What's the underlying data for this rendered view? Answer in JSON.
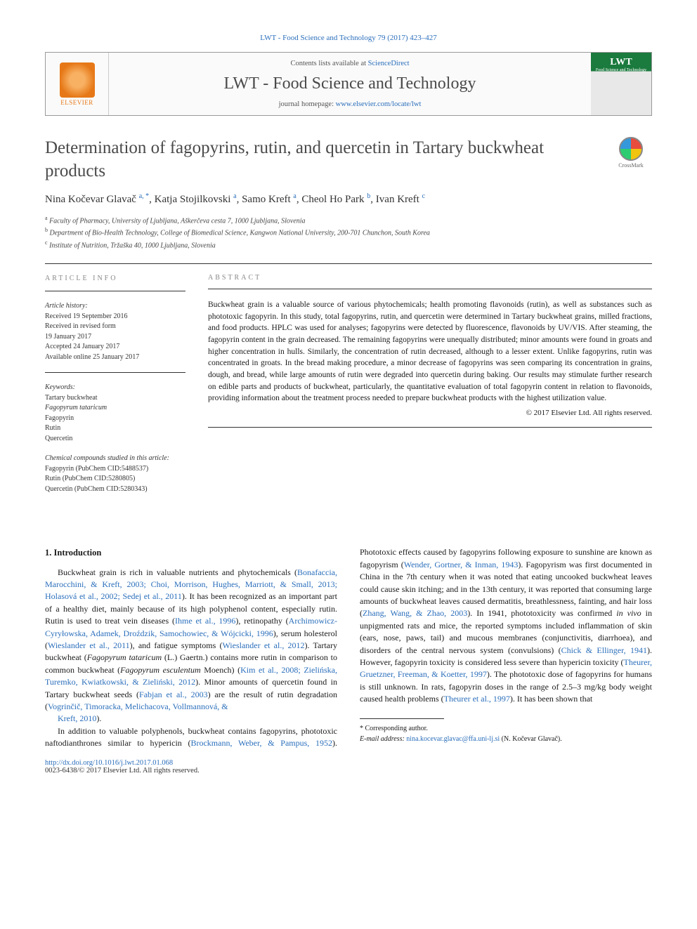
{
  "journal_ref": "LWT - Food Science and Technology 79 (2017) 423–427",
  "header": {
    "publisher": "ELSEVIER",
    "contents_prefix": "Contents lists available at ",
    "contents_link": "ScienceDirect",
    "journal_name": "LWT - Food Science and Technology",
    "homepage_prefix": "journal homepage: ",
    "homepage_url": "www.elsevier.com/locate/lwt",
    "cover_abbr": "LWT",
    "cover_sub": "Food Science and Technology"
  },
  "title": "Determination of fagopyrins, rutin, and quercetin in Tartary buckwheat products",
  "crossmark": "CrossMark",
  "authors_html": "Nina Kočevar Glavač <span class='sup'>a, *</span>, Katja Stojilkovski <span class='sup'>a</span>, Samo Kreft <span class='sup'>a</span>, Cheol Ho Park <span class='sup'>b</span>, Ivan Kreft <span class='sup'>c</span>",
  "affiliations": [
    {
      "sup": "a",
      "text": "Faculty of Pharmacy, University of Ljubljana, Aškerčeva cesta 7, 1000 Ljubljana, Slovenia"
    },
    {
      "sup": "b",
      "text": "Department of Bio-Health Technology, College of Biomedical Science, Kangwon National University, 200-701 Chunchon, South Korea"
    },
    {
      "sup": "c",
      "text": "Institute of Nutrition, Tržaška 40, 1000 Ljubljana, Slovenia"
    }
  ],
  "info": {
    "heading_info": "article info",
    "heading_abstract": "abstract",
    "history_label": "Article history:",
    "history": [
      "Received 19 September 2016",
      "Received in revised form",
      "19 January 2017",
      "Accepted 24 January 2017",
      "Available online 25 January 2017"
    ],
    "keywords_label": "Keywords:",
    "keywords": [
      "Tartary buckwheat",
      "Fagopyrum tataricum",
      "Fagopyrin",
      "Rutin",
      "Quercetin"
    ],
    "compounds_label": "Chemical compounds studied in this article:",
    "compounds": [
      "Fagopyrin (PubChem CID:5488537)",
      "Rutin (PubChem CID:5280805)",
      "Quercetin (PubChem CID:5280343)"
    ]
  },
  "abstract": "Buckwheat grain is a valuable source of various phytochemicals; health promoting flavonoids (rutin), as well as substances such as phototoxic fagopyrin. In this study, total fagopyrins, rutin, and quercetin were determined in Tartary buckwheat grains, milled fractions, and food products. HPLC was used for analyses; fagopyrins were detected by fluorescence, flavonoids by UV/VIS. After steaming, the fagopyrin content in the grain decreased. The remaining fagopyrins were unequally distributed; minor amounts were found in groats and higher concentration in hulls. Similarly, the concentration of rutin decreased, although to a lesser extent. Unlike fagopyrins, rutin was concentrated in groats. In the bread making procedure, a minor decrease of fagopyrins was seen comparing its concentration in grains, dough, and bread, while large amounts of rutin were degraded into quercetin during baking. Our results may stimulate further research on edible parts and products of buckwheat, particularly, the quantitative evaluation of total fagopyrin content in relation to flavonoids, providing information about the treatment process needed to prepare buckwheat products with the highest utilization value.",
  "copyright": "© 2017 Elsevier Ltd. All rights reserved.",
  "section1_heading": "1. Introduction",
  "col1_html": "Buckwheat grain is rich in valuable nutrients and phytochemicals (<span class='cite'>Bonafaccia, Marocchini, &amp; Kreft, 2003; Choi, Morrison, Hughes, Marriott, &amp; Small, 2013; Holasová et al., 2002; Sedej et al., 2011</span>). It has been recognized as an important part of a healthy diet, mainly because of its high polyphenol content, especially rutin. Rutin is used to treat vein diseases (<span class='cite'>Ihme et al., 1996</span>), retinopathy (<span class='cite'>Archimowicz-Cyryłowska, Adamek, Droździk, Samochowiec, &amp; Wójcicki, 1996</span>), serum holesterol (<span class='cite'>Wieslander et al., 2011</span>), and fatigue symptoms (<span class='cite'>Wieslander et al., 2012</span>). Tartary buckwheat (<span class='ital'>Fagopyrum tataricum</span> (L.) Gaertn.) contains more rutin in comparison to common buckwheat (<span class='ital'>Fagopyrum esculentum</span> Moench) (<span class='cite'>Kim et al., 2008; Zielińska, Turemko, Kwiatkowski, &amp; Zieliński, 2012</span>). Minor amounts of quercetin found in Tartary buckwheat seeds (<span class='cite'>Fabjan et al., 2003</span>) are the result of rutin degradation (<span class='cite'>Vogrinčič, Timoracka, Melichacova, Vollmannová, &amp;</span>",
  "col2_html": "<span class='cite'>Kreft, 2010</span>).</p><p>In addition to valuable polyphenols, buckwheat contains fagopyrins, phototoxic naftodianthrones similar to hypericin (<span class='cite'>Brockmann, Weber, &amp; Pampus, 1952</span>). Phototoxic effects caused by fagopyrins following exposure to sunshine are known as fagopyrism (<span class='cite'>Wender, Gortner, &amp; Inman, 1943</span>). Fagopyrism was first documented in China in the 7th century when it was noted that eating uncooked buckwheat leaves could cause skin itching; and in the 13th century, it was reported that consuming large amounts of buckwheat leaves caused dermatitis, breathlessness, fainting, and hair loss (<span class='cite'>Zhang, Wang, &amp; Zhao, 2003</span>). In 1941, phototoxicity was confirmed <span class='ital'>in vivo</span> in unpigmented rats and mice, the reported symptoms included inflammation of skin (ears, nose, paws, tail) and mucous membranes (conjunctivitis, diarrhoea), and disorders of the central nervous system (convulsions) (<span class='cite'>Chick &amp; Ellinger, 1941</span>). However, fagopyrin toxicity is considered less severe than hypericin toxicity (<span class='cite'>Theurer, Gruetzner, Freeman, &amp; Koetter, 1997</span>). The phototoxic dose of fagopyrins for humans is still unknown. In rats, fagopyrin doses in the range of 2.5–3 mg/kg body weight caused health problems (<span class='cite'>Theurer et al., 1997</span>). It has been shown that",
  "footer": {
    "corr_label": "* Corresponding author.",
    "email_label": "E-mail address: ",
    "email": "nina.kocevar.glavac@ffa.uni-lj.si",
    "email_suffix": " (N. Kočevar Glavač).",
    "doi": "http://dx.doi.org/10.1016/j.lwt.2017.01.068",
    "issn": "0023-6438/© 2017 Elsevier Ltd. All rights reserved."
  },
  "colors": {
    "link": "#2a6ebb",
    "publisher": "#e67817",
    "cover_green": "#1b7a3e",
    "text": "#1a1a1a",
    "muted": "#888888"
  },
  "typography": {
    "body_pt": 12,
    "title_pt": 25,
    "journal_name_pt": 24,
    "authors_pt": 15,
    "abstract_pt": 11.5,
    "info_pt": 10,
    "family": "Georgia, Times New Roman, serif"
  }
}
